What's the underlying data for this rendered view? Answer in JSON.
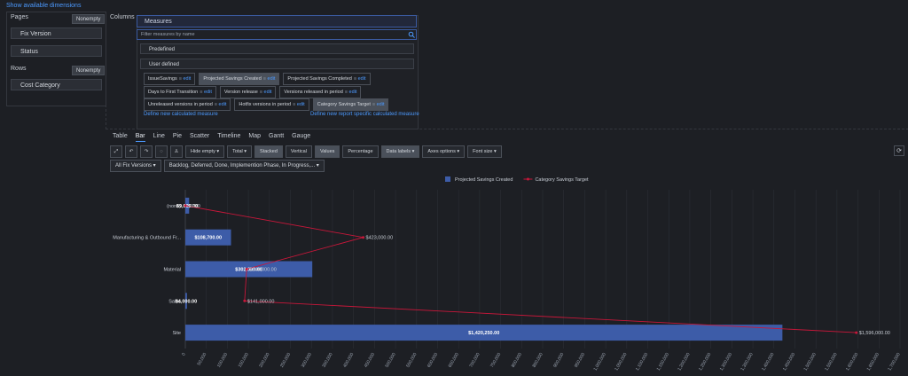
{
  "header": {
    "link": "Show available dimensions"
  },
  "pages": {
    "title": "Pages",
    "button": "Nonempty",
    "items": [
      "Fix Version",
      "Status"
    ]
  },
  "rows": {
    "title": "Rows",
    "button": "Nonempty",
    "items": [
      "Cost Category"
    ]
  },
  "columns": {
    "title": "Columns"
  },
  "measures": {
    "title": "Measures",
    "filter_placeholder": "Filter measures by name",
    "predefined": "Predefined",
    "user_defined": "User defined",
    "edit": "edit",
    "items": [
      [
        "IssueSavings",
        "Projected Savings Created",
        "Projected Savings Completed"
      ],
      [
        "Days to First Transition",
        "Version release",
        "Versions released in period"
      ],
      [
        "Unreleased versions in period",
        "Hotfix versions in period",
        "Category Savings Target"
      ]
    ],
    "links": [
      "Define new calculated measure",
      "Define new report specific calculated measure"
    ]
  },
  "tabs": [
    "Table",
    "Bar",
    "Line",
    "Pie",
    "Scatter",
    "Timeline",
    "Map",
    "Gantt",
    "Gauge"
  ],
  "toolbar": [
    "Hide empty",
    "Total",
    "Stacked",
    "Vertical",
    "Values",
    "Percentage",
    "Data labels",
    "Axes options",
    "Font size"
  ],
  "filters": [
    "All Fix Versions",
    "Backlog, Deferred, Done, Implemention Phase, In Progress,..."
  ],
  "chart_data": {
    "type": "bar",
    "orientation": "horizontal",
    "categories": [
      "(none)",
      "Manufacturing & Outbound Fr...",
      "Material",
      "Sales",
      "Site"
    ],
    "series": [
      {
        "name": "Projected Savings Created",
        "type": "bar",
        "color": "#3d5ca8",
        "values": [
          9000,
          108700,
          302000,
          4000,
          1420250
        ],
        "value_labels": [
          "$9,000.00",
          "$108,700.00",
          "$302,000.00",
          "$4,000.00",
          "$1,420,250.00"
        ]
      },
      {
        "name": "Category Savings Target",
        "type": "line",
        "color": "#c8173a",
        "values": [
          0,
          423000,
          146000,
          141000,
          1596000
        ],
        "value_labels": [
          "$0.00",
          "$423,000.00",
          "$146,000.00",
          "$141,000.00",
          "$1,596,000.00"
        ]
      }
    ],
    "xlim": [
      0,
      1700000
    ],
    "xticks": [
      0,
      {
        "value": 50000,
        "label": "50,000"
      },
      {
        "value": 100000,
        "label": "100,000"
      },
      {
        "value": 150000,
        "label": "150,000"
      },
      {
        "value": 200000,
        "label": "200,000"
      },
      {
        "value": 250000,
        "label": "250,000"
      },
      {
        "value": 300000,
        "label": "300,000"
      },
      {
        "value": 350000,
        "label": "350,000"
      },
      {
        "value": 400000,
        "label": "400,000"
      },
      {
        "value": 450000,
        "label": "450,000"
      },
      {
        "value": 500000,
        "label": "500,000"
      },
      {
        "value": 550000,
        "label": "550,000"
      },
      {
        "value": 600000,
        "label": "600,000"
      },
      {
        "value": 650000,
        "label": "650,000"
      },
      {
        "value": 700000,
        "label": "700,000"
      },
      {
        "value": 750000,
        "label": "750,000"
      },
      {
        "value": 800000,
        "label": "800,000"
      },
      {
        "value": 850000,
        "label": "850,000"
      },
      {
        "value": 900000,
        "label": "900,000"
      },
      {
        "value": 950000,
        "label": "950,000"
      },
      {
        "value": 1000000,
        "label": "1,000,000"
      },
      {
        "value": 1050000,
        "label": "1,050,000"
      },
      {
        "value": 1100000,
        "label": "1,100,000"
      },
      {
        "value": 1150000,
        "label": "1,150,000"
      },
      {
        "value": 1200000,
        "label": "1,200,000"
      },
      {
        "value": 1250000,
        "label": "1,250,000"
      },
      {
        "value": 1300000,
        "label": "1,300,000"
      },
      {
        "value": 1350000,
        "label": "1,350,000"
      },
      {
        "value": 1400000,
        "label": "1,400,000"
      },
      {
        "value": 1450000,
        "label": "1,450,000"
      },
      {
        "value": 1500000,
        "label": "1,500,000"
      },
      {
        "value": 1550000,
        "label": "1,550,000"
      },
      {
        "value": 1600000,
        "label": "1,600,000"
      },
      {
        "value": 1650000,
        "label": "1,650,000"
      },
      {
        "value": 1700000,
        "label": "1,700,000"
      }
    ],
    "grid": true,
    "legend": "top"
  }
}
